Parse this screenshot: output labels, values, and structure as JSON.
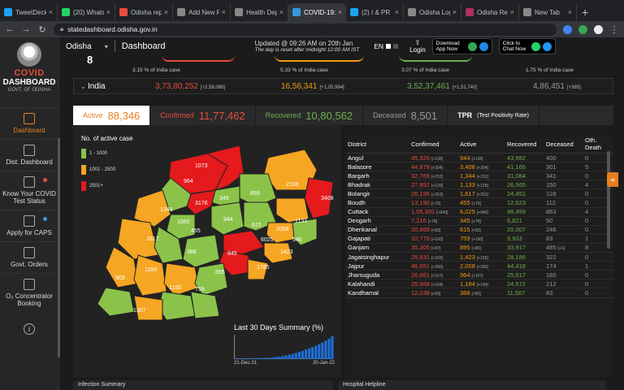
{
  "browser": {
    "tabs": [
      {
        "title": "TweetDeck",
        "color": "#1da1f2"
      },
      {
        "title": "(20) WhatsApp",
        "color": "#25d366"
      },
      {
        "title": "Odisha report",
        "color": "#e74c3c"
      },
      {
        "title": "Add New Post",
        "color": "#888888"
      },
      {
        "title": "Health Dept",
        "color": "#888888"
      },
      {
        "title": "COVID-19:",
        "color": "#3498db",
        "active": true
      },
      {
        "title": "(2) I & PR D",
        "color": "#1da1f2"
      },
      {
        "title": "Odisha Log",
        "color": "#888888"
      },
      {
        "title": "Odisha Rec",
        "color": "#b03060"
      },
      {
        "title": "New Tab",
        "color": "#888888"
      }
    ],
    "url": "statedashboard.odisha.gov.in"
  },
  "sidebar": {
    "logo_covid": "COVID",
    "logo_dashboard": "DASHBOARD",
    "logo_govt": "GOVT. OF ODISHA",
    "items": [
      {
        "label": "Dashboard"
      },
      {
        "label": "Dist. Dashboard"
      },
      {
        "label": "Know Your COVID Test Status"
      },
      {
        "label": "Apply for CAPS"
      },
      {
        "label": "Govt. Orders"
      },
      {
        "label": "O₂ Concentrator Booking"
      }
    ],
    "info": "i"
  },
  "header": {
    "region": "Odisha",
    "title": "Dashboard",
    "updated": "Updated @ 09:26 AM on 20th Jan",
    "reset_note": "The day is reset after midnight 12:00 AM IST",
    "lang": "EN",
    "login": "Login",
    "download": "Download App Now",
    "chat": "Click to Chat Now"
  },
  "toprow": {
    "big_digit": "8",
    "cells": [
      "3.15 % of India case",
      "5.33 % of India case",
      "3.07 % of India case",
      "1.75 % of India case"
    ]
  },
  "india": {
    "label": "India",
    "confirmed": "3,73,80,252",
    "confirmed_delta": "[+2,58,088]",
    "active": "16,56,341",
    "active_delta": "[+1,05,964]",
    "recovered": "3,52,37,461",
    "recovered_delta": "[+1,51,740]",
    "deceased": "4,86,451",
    "deceased_delta": "[+385]"
  },
  "stat_tabs": [
    {
      "label": "Active",
      "value": "88,346"
    },
    {
      "label": "Confirmed",
      "value": "11,77,462"
    },
    {
      "label": "Recovered",
      "value": "10,80,562"
    },
    {
      "label": "Deceased",
      "value": "8,501"
    },
    {
      "label": "TPR",
      "value": "(Test Positivity Rate)"
    }
  ],
  "map": {
    "legend_title": "No. of active case",
    "legend": [
      {
        "label": "1 - 1000",
        "color": "#8bc34a"
      },
      {
        "label": "1001 - 2500",
        "color": "#f5a623"
      },
      {
        "label": "2501+",
        "color": "#e41a1c"
      }
    ],
    "labels": [
      "1073",
      "964",
      "2106",
      "3408",
      "345",
      "859",
      "3176",
      "1344",
      "1060",
      "944",
      "1133",
      "615",
      "2058",
      "546",
      "1617",
      "455",
      "388",
      "6025",
      "1423",
      "845",
      "1785",
      "1184",
      "895",
      "909",
      "1150",
      "759",
      "1307",
      "410"
    ],
    "summary_title": "Last 30 Days Summary (%)",
    "summary_start": "21-Dec-21",
    "summary_end": "20-Jan-22",
    "summary_values": [
      0.5,
      0.5,
      0.6,
      0.6,
      0.7,
      0.7,
      0.8,
      0.9,
      1,
      1.1,
      1.3,
      1.5,
      1.8,
      2.2,
      2.6,
      3.1,
      3.8,
      4.4,
      5.2,
      6.1,
      7,
      8,
      9,
      10,
      11,
      12.5,
      14,
      15.5,
      17,
      19
    ]
  },
  "table": {
    "headers": [
      "District",
      "Confirmed",
      "Active",
      "Recovered",
      "Deceased",
      "Oth. Death"
    ],
    "rows": [
      [
        "Angul",
        "45,326",
        "[+136]",
        "944",
        "[+136]",
        "43,982",
        "400",
        "",
        "0"
      ],
      [
        "Balasore",
        "44,878",
        "[+304]",
        "3,408",
        "[+304]",
        "41,165",
        "301",
        "",
        "5"
      ],
      [
        "Bargarh",
        "32,769",
        "[+152]",
        "1,344",
        "[+152]",
        "31,084",
        "341",
        "",
        "0"
      ],
      [
        "Bhadrak",
        "27,852",
        "[+129]",
        "1,133",
        "[+129]",
        "26,565",
        "150",
        "",
        "4"
      ],
      [
        "Bolangir",
        "26,196",
        "[+253]",
        "1,617",
        "[+253]",
        "24,451",
        "128",
        "",
        "0"
      ],
      [
        "Boudh",
        "13,190",
        "[+76]",
        "455",
        "[+76]",
        "12,623",
        "112",
        "",
        "0"
      ],
      [
        "Cuttack",
        "1,05,391",
        "[+940]",
        "6,025",
        "[+940]",
        "98,499",
        "863",
        "",
        "4"
      ],
      [
        "Deogarh",
        "7,216",
        "[+78]",
        "345",
        "[+78]",
        "6,821",
        "50",
        "",
        "0"
      ],
      [
        "Dhenkanal",
        "20,868",
        "[+83]",
        "615",
        "[+83]",
        "20,007",
        "246",
        "",
        "0"
      ],
      [
        "Gajapati",
        "10,776",
        "[+100]",
        "759",
        "[+100]",
        "9,933",
        "83",
        "",
        "1"
      ],
      [
        "Ganjam",
        "35,305",
        "[+87]",
        "895",
        "[+86]",
        "33,917",
        "485",
        "[+1]",
        "8"
      ],
      [
        "Jagatsinghapur",
        "29,931",
        "[+165]",
        "1,423",
        "[+165]",
        "28,186",
        "322",
        "",
        "0"
      ],
      [
        "Jajpur",
        "46,651",
        "[+290]",
        "2,058",
        "[+290]",
        "44,418",
        "174",
        "",
        "1"
      ],
      [
        "Jharsuguda",
        "26,661",
        "[+157]",
        "964",
        "[+157]",
        "25,517",
        "180",
        "",
        "0"
      ],
      [
        "Kalahandi",
        "25,968",
        "[+194]",
        "1,184",
        "[+194]",
        "24,572",
        "212",
        "",
        "0"
      ],
      [
        "Kandhamal",
        "12,038",
        "[+83]",
        "388",
        "[+83]",
        "11,567",
        "83",
        "",
        "0"
      ]
    ]
  },
  "bottom": {
    "left": "Infection Summary",
    "right": "Hospital Helpline"
  }
}
